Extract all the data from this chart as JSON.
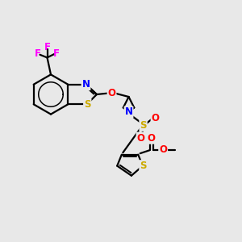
{
  "background_color": "#e8e8e8",
  "bond_color": "#000000",
  "bond_width": 1.6,
  "atom_colors": {
    "C": "#000000",
    "N": "#0000ff",
    "O": "#ff0000",
    "S": "#ccaa00",
    "F": "#ff00ff"
  },
  "font_size": 8.5,
  "figsize": [
    3.0,
    3.0
  ],
  "dpi": 100
}
